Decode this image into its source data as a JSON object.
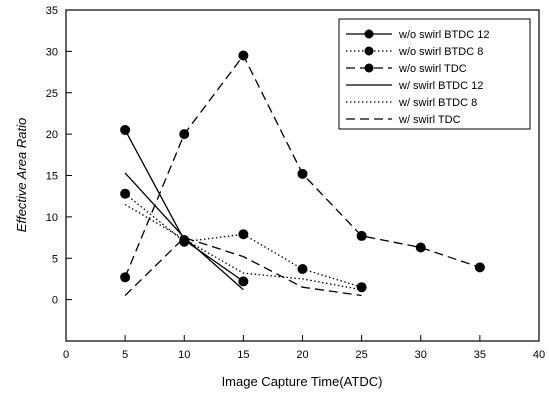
{
  "chart_data": {
    "type": "line",
    "xlabel": "Image Capture Time(ATDC)",
    "ylabel": "Effective Area Ratio",
    "xlim": [
      0,
      40
    ],
    "ylim": [
      -5,
      35
    ],
    "xticks": [
      0,
      5,
      10,
      15,
      20,
      25,
      30,
      35,
      40
    ],
    "yticks": [
      0,
      5,
      10,
      15,
      20,
      25,
      30,
      35
    ],
    "grid": false,
    "legend_position": "top-right",
    "series": [
      {
        "name": "w/o swirl BTDC 12",
        "line_style": "solid",
        "markers": true,
        "x": [
          5,
          10,
          15
        ],
        "y": [
          20.5,
          7.2,
          2.2
        ]
      },
      {
        "name": "w/o swirl BTDC 8",
        "line_style": "dotted",
        "markers": true,
        "x": [
          5,
          10,
          15,
          20,
          25
        ],
        "y": [
          12.8,
          7.0,
          7.9,
          3.7,
          1.5
        ]
      },
      {
        "name": "w/o swirl TDC",
        "line_style": "dashed",
        "markers": true,
        "x": [
          5,
          10,
          15,
          20,
          25,
          30,
          35
        ],
        "y": [
          2.7,
          20.0,
          29.5,
          15.2,
          7.7,
          6.3,
          3.9
        ]
      },
      {
        "name": "w/ swirl BTDC 12",
        "line_style": "solid",
        "markers": false,
        "x": [
          5,
          10,
          15
        ],
        "y": [
          15.3,
          7.5,
          1.2
        ]
      },
      {
        "name": "w/ swirl BTDC 8",
        "line_style": "dotted",
        "markers": false,
        "x": [
          5,
          10,
          15,
          20,
          25
        ],
        "y": [
          11.5,
          7.3,
          3.2,
          2.5,
          1.2
        ]
      },
      {
        "name": "w/ swirl TDC",
        "line_style": "dashed",
        "markers": false,
        "x": [
          5,
          10,
          15,
          20,
          25
        ],
        "y": [
          0.5,
          7.5,
          5.2,
          1.5,
          0.5
        ]
      }
    ]
  }
}
